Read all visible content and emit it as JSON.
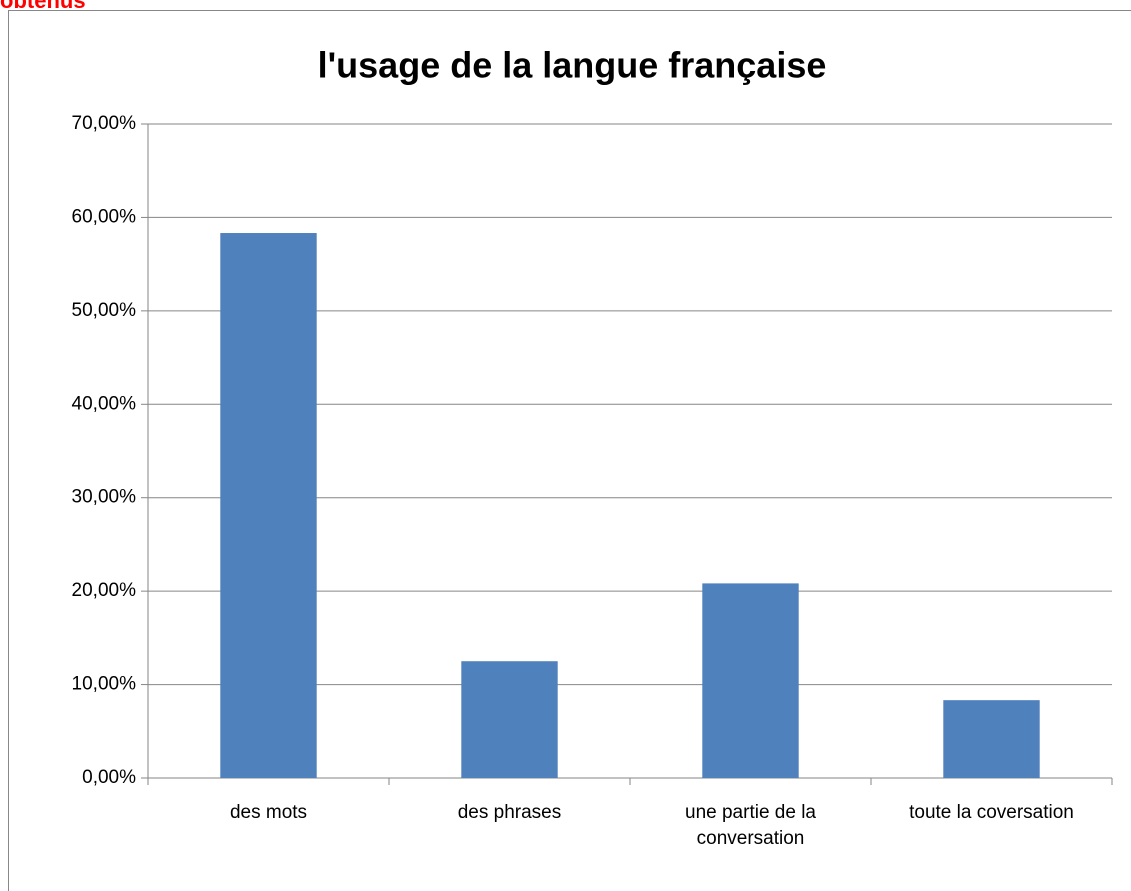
{
  "caption": "obtenus",
  "chart_data": {
    "type": "bar",
    "title": "l'usage de la langue française",
    "categories": [
      "des mots",
      "des phrases",
      "une partie de la conversation",
      "toute la coversation"
    ],
    "values": [
      58.33,
      12.5,
      20.83,
      8.33
    ],
    "color": "#4f81bd",
    "ylim": [
      0,
      70
    ],
    "yticks": [
      {
        "value": 0,
        "label": "0,00%"
      },
      {
        "value": 10,
        "label": "10,00%"
      },
      {
        "value": 20,
        "label": "20,00%"
      },
      {
        "value": 30,
        "label": "30,00%"
      },
      {
        "value": 40,
        "label": "40,00%"
      },
      {
        "value": 50,
        "label": "50,00%"
      },
      {
        "value": 60,
        "label": "60,00%"
      },
      {
        "value": 70,
        "label": "70,00%"
      }
    ],
    "grid": true
  }
}
